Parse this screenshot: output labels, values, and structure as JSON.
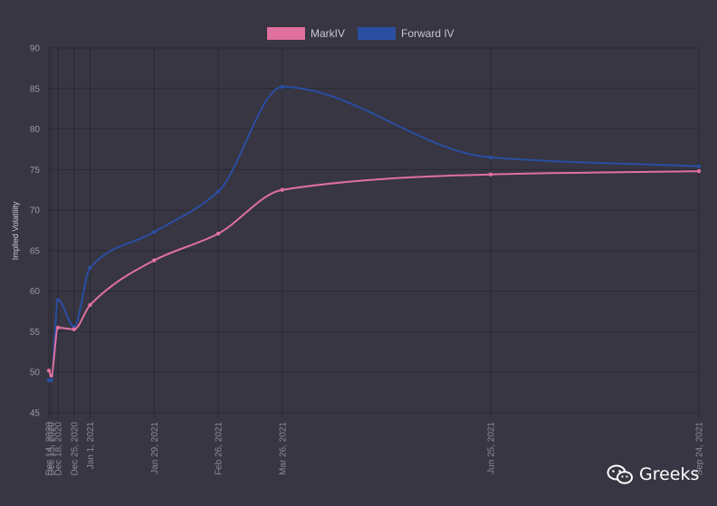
{
  "chart_data": {
    "type": "line",
    "title": "",
    "xlabel": "",
    "ylabel": "Implied Volatility",
    "ylim": [
      45,
      90
    ],
    "yticks": [
      45,
      50,
      55,
      60,
      65,
      70,
      75,
      80,
      85,
      90
    ],
    "grid": true,
    "legend_position": "top-center",
    "categories": [
      "Dec 14, 2020",
      "Dec 15, 2020",
      "Dec 18, 2020",
      "Dec 25, 2020",
      "Jan 1, 2021",
      "Jan 29, 2021",
      "Feb 26, 2021",
      "Mar 26, 2021",
      "Jun 25, 2021",
      "Sep 24, 2021"
    ],
    "x": [
      "2020-12-14",
      "2020-12-15",
      "2020-12-18",
      "2020-12-25",
      "2021-01-01",
      "2021-01-29",
      "2021-02-26",
      "2021-03-26",
      "2021-06-25",
      "2021-09-24"
    ],
    "series": [
      {
        "name": "MarkIV",
        "color": "#e0709e",
        "values": [
          50.2,
          49.6,
          55.5,
          55.3,
          58.3,
          63.8,
          67.1,
          72.5,
          74.4,
          74.8
        ]
      },
      {
        "name": "Forward IV",
        "color": "#2a4ea1",
        "values": [
          49.0,
          49.0,
          58.9,
          55.6,
          62.9,
          67.3,
          72.3,
          85.2,
          76.5,
          75.4
        ]
      }
    ]
  },
  "watermark": {
    "text": "Greeks",
    "icon": "wechat-icon"
  }
}
